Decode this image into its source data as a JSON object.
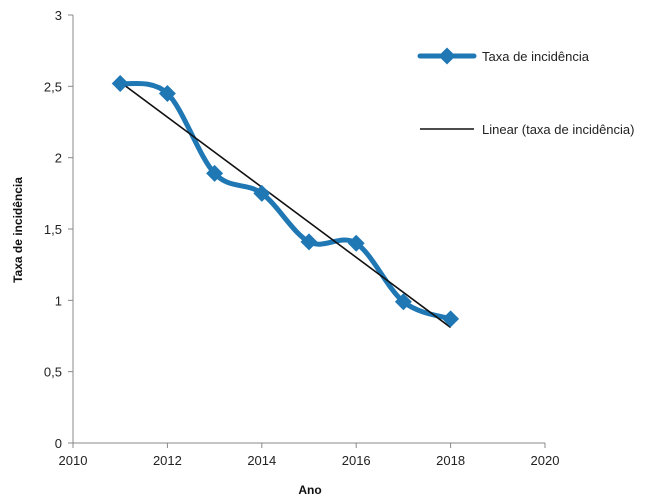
{
  "chart_data": {
    "type": "line",
    "xlabel": "Ano",
    "ylabel": "Taxa de incidência",
    "xlim": [
      2010,
      2020
    ],
    "ylim": [
      0,
      3
    ],
    "x_ticks": [
      2010,
      2012,
      2014,
      2016,
      2018,
      2020
    ],
    "y_ticks": [
      0,
      0.5,
      1,
      1.5,
      2,
      2.5,
      3
    ],
    "y_tick_labels": [
      "0",
      "0,5",
      "1",
      "1,5",
      "2",
      "2,5",
      "3"
    ],
    "grid": false,
    "legend_position": "right",
    "series": [
      {
        "name": "Taxa de incidência",
        "style": "smooth-line-with-diamond-markers",
        "color": "#1f77b4",
        "x": [
          2011,
          2012,
          2013,
          2014,
          2015,
          2016,
          2017,
          2018
        ],
        "y": [
          2.52,
          2.45,
          1.89,
          1.75,
          1.41,
          1.4,
          0.99,
          0.87
        ]
      },
      {
        "name": "Linear (taxa de incidência)",
        "style": "trendline",
        "color": "#111111",
        "x": [
          2011,
          2018
        ],
        "y": [
          2.53,
          0.81
        ]
      }
    ]
  }
}
